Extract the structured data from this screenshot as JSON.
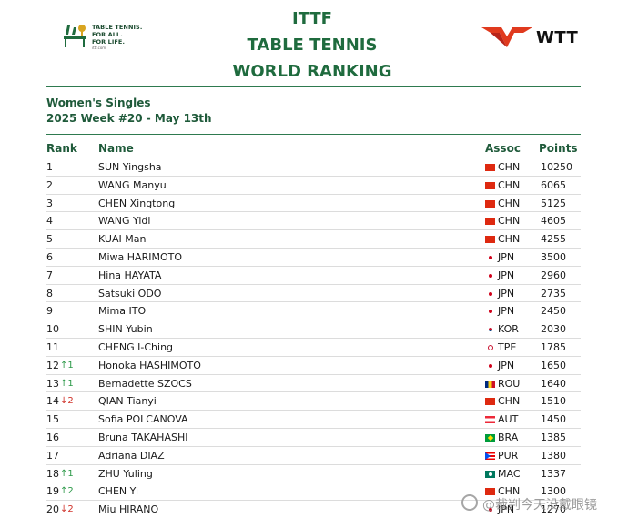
{
  "header": {
    "ittf_logo": {
      "tagline_lines": [
        "TABLE TENNIS.",
        "FOR ALL.",
        "FOR LIFE."
      ],
      "url": "ittf.com"
    },
    "title_lines": [
      "ITTF",
      "TABLE TENNIS",
      "WORLD RANKING"
    ],
    "wtt_logo": {
      "text": "WTT",
      "accent_color": "#e03a1e"
    }
  },
  "section": {
    "event": "Women's Singles",
    "week": "2025 Week #20 - May 13th"
  },
  "table": {
    "headers": {
      "rank": "Rank",
      "name": "Name",
      "assoc": "Assoc",
      "points": "Points"
    },
    "rows": [
      {
        "rank": "1",
        "move": "",
        "dir": "",
        "name": "SUN Yingsha",
        "flag": "chn",
        "assoc": "CHN",
        "points": "10250"
      },
      {
        "rank": "2",
        "move": "",
        "dir": "",
        "name": "WANG Manyu",
        "flag": "chn",
        "assoc": "CHN",
        "points": "6065"
      },
      {
        "rank": "3",
        "move": "",
        "dir": "",
        "name": "CHEN Xingtong",
        "flag": "chn",
        "assoc": "CHN",
        "points": "5125"
      },
      {
        "rank": "4",
        "move": "",
        "dir": "",
        "name": "WANG Yidi",
        "flag": "chn",
        "assoc": "CHN",
        "points": "4605"
      },
      {
        "rank": "5",
        "move": "",
        "dir": "",
        "name": "KUAI Man",
        "flag": "chn",
        "assoc": "CHN",
        "points": "4255"
      },
      {
        "rank": "6",
        "move": "",
        "dir": "",
        "name": "Miwa HARIMOTO",
        "flag": "jpn",
        "assoc": "JPN",
        "points": "3500"
      },
      {
        "rank": "7",
        "move": "",
        "dir": "",
        "name": "Hina HAYATA",
        "flag": "jpn",
        "assoc": "JPN",
        "points": "2960"
      },
      {
        "rank": "8",
        "move": "",
        "dir": "",
        "name": "Satsuki ODO",
        "flag": "jpn",
        "assoc": "JPN",
        "points": "2735"
      },
      {
        "rank": "9",
        "move": "",
        "dir": "",
        "name": "Mima ITO",
        "flag": "jpn",
        "assoc": "JPN",
        "points": "2450"
      },
      {
        "rank": "10",
        "move": "",
        "dir": "",
        "name": "SHIN Yubin",
        "flag": "kor",
        "assoc": "KOR",
        "points": "2030"
      },
      {
        "rank": "11",
        "move": "",
        "dir": "",
        "name": "CHENG I-Ching",
        "flag": "tpe",
        "assoc": "TPE",
        "points": "1785"
      },
      {
        "rank": "12",
        "move": "↑1",
        "dir": "up",
        "name": "Honoka HASHIMOTO",
        "flag": "jpn",
        "assoc": "JPN",
        "points": "1650"
      },
      {
        "rank": "13",
        "move": "↑1",
        "dir": "up",
        "name": "Bernadette SZOCS",
        "flag": "rou",
        "assoc": "ROU",
        "points": "1640"
      },
      {
        "rank": "14",
        "move": "↓2",
        "dir": "down",
        "name": "QIAN Tianyi",
        "flag": "chn",
        "assoc": "CHN",
        "points": "1510"
      },
      {
        "rank": "15",
        "move": "",
        "dir": "",
        "name": "Sofia POLCANOVA",
        "flag": "aut",
        "assoc": "AUT",
        "points": "1450"
      },
      {
        "rank": "16",
        "move": "",
        "dir": "",
        "name": "Bruna TAKAHASHI",
        "flag": "bra",
        "assoc": "BRA",
        "points": "1385"
      },
      {
        "rank": "17",
        "move": "",
        "dir": "",
        "name": "Adriana DIAZ",
        "flag": "pur",
        "assoc": "PUR",
        "points": "1380"
      },
      {
        "rank": "18",
        "move": "↑1",
        "dir": "up",
        "name": "ZHU Yuling",
        "flag": "mac",
        "assoc": "MAC",
        "points": "1337"
      },
      {
        "rank": "19",
        "move": "↑2",
        "dir": "up",
        "name": "CHEN Yi",
        "flag": "chn",
        "assoc": "CHN",
        "points": "1300"
      },
      {
        "rank": "20",
        "move": "↓2",
        "dir": "down",
        "name": "Miu HIRANO",
        "flag": "jpn",
        "assoc": "JPN",
        "points": "1270"
      }
    ]
  },
  "watermark": {
    "text": "@裁判今天没戴眼镜"
  },
  "colors": {
    "title_green": "#1f6b3e",
    "up": "#2e9a4a",
    "down": "#d0342c"
  }
}
